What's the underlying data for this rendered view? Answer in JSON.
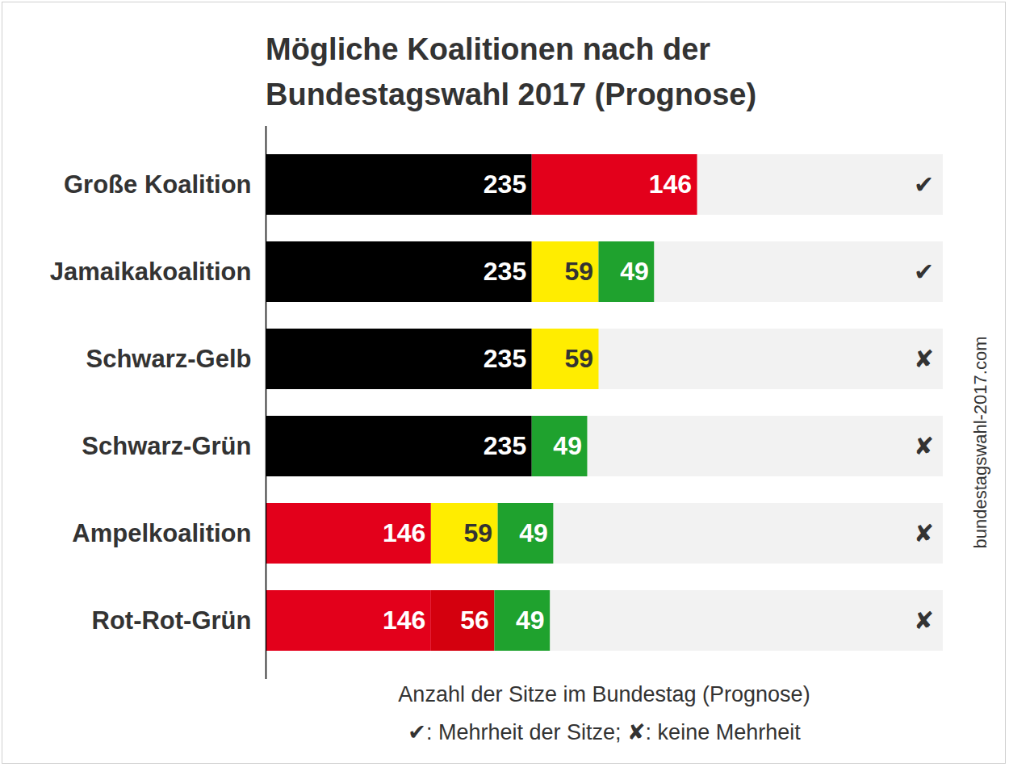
{
  "chart_data": {
    "type": "bar",
    "orientation": "horizontal",
    "stacked": true,
    "data_labels": true,
    "tick_labels": "y",
    "grid": false,
    "title": "Mögliche Koalitionen nach der\nBundestagswahl 2017 (Prognose)",
    "xlabel": "Anzahl der Sitze im Bundestag (Prognose)",
    "caption": "✔: Mehrheit der Sitze; ✘: keine Mehrheit",
    "source": "bundestagswahl-2017.com",
    "categories": [
      "Große Koalition",
      "Jamaikakoalition",
      "Schwarz-Gelb",
      "Schwarz-Grün",
      "Ampelkoalition",
      "Rot-Rot-Grün"
    ],
    "bars": [
      {
        "values": [
          235,
          146
        ],
        "colors": [
          "#000000",
          "#e3001b"
        ],
        "status": "✔"
      },
      {
        "values": [
          235,
          59,
          49
        ],
        "colors": [
          "#000000",
          "#ffed00",
          "#1fa22e"
        ],
        "status": "✔"
      },
      {
        "values": [
          235,
          59
        ],
        "colors": [
          "#000000",
          "#ffed00"
        ],
        "status": "✘"
      },
      {
        "values": [
          235,
          49
        ],
        "colors": [
          "#000000",
          "#1fa22e"
        ],
        "status": "✘"
      },
      {
        "values": [
          146,
          59,
          49
        ],
        "colors": [
          "#e3001b",
          "#ffed00",
          "#1fa22e"
        ],
        "status": "✘"
      },
      {
        "values": [
          146,
          56,
          49
        ],
        "colors": [
          "#e3001b",
          "#d4000e",
          "#1fa22e"
        ],
        "status": "✘"
      }
    ],
    "xlim": [
      0,
      598
    ],
    "xticks": []
  }
}
